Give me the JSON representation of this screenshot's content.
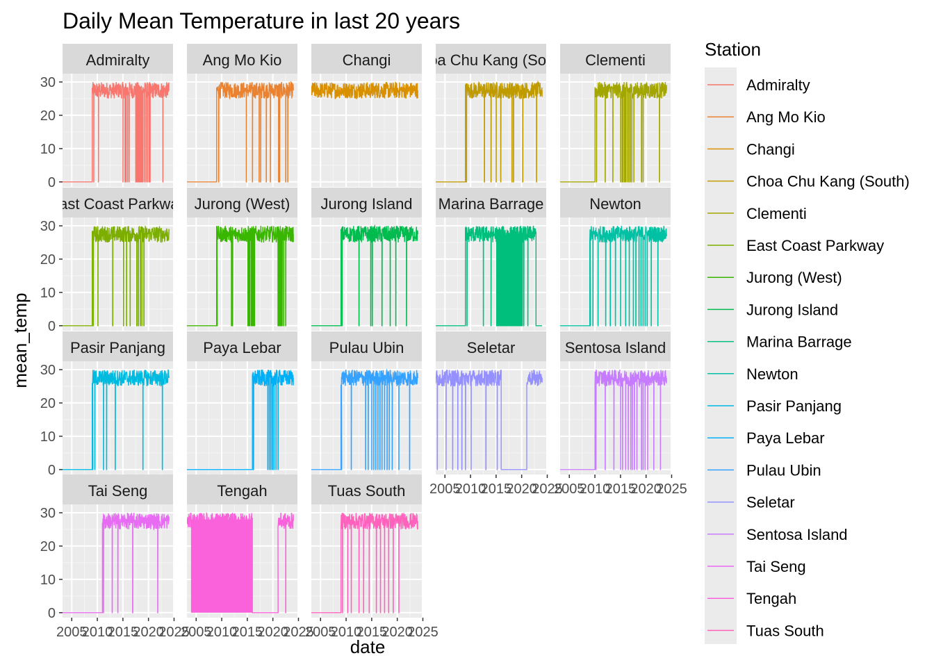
{
  "chart_data": {
    "type": "line",
    "title": "Daily Mean Temperature in last 20 years",
    "xlabel": "date",
    "ylabel": "mean_temp",
    "legend_title": "Station",
    "legend_position": "right",
    "grid": true,
    "x_ticks": [
      "2005",
      "2010",
      "2015",
      "2020",
      "2025"
    ],
    "y_ticks": [
      0,
      10,
      20,
      30
    ],
    "xlim": [
      2003.2,
      2024.8
    ],
    "ylim": [
      -1.5,
      32.5
    ],
    "series": [
      {
        "name": "Admiralty",
        "strip_label": "Admiralty",
        "color": "#F8766D",
        "segments": [
          [
            2003.0,
            2009.0,
            0
          ],
          [
            2009.0,
            2024.0,
            27.5
          ]
        ],
        "drops": [
          2009.3,
          2010.2,
          2015.0,
          2015.4,
          2015.6,
          2015.9,
          2016.2,
          2017.5,
          2017.7,
          2017.9,
          2018.1,
          2018.3,
          2018.5,
          2018.7,
          2018.9,
          2019.2,
          2019.5,
          2019.8,
          2020.1,
          2020.3,
          2022.8
        ]
      },
      {
        "name": "Ang Mo Kio",
        "strip_label": "Ang Mo Kio",
        "color": "#EA8331",
        "segments": [
          [
            2003.0,
            2009.0,
            0
          ],
          [
            2009.0,
            2024.0,
            27.5
          ]
        ],
        "drops": [
          2009.4,
          2014.8,
          2016.0,
          2017.3,
          2017.6,
          2018.7,
          2019.5,
          2021.1,
          2021.3,
          2022.5,
          2022.9
        ]
      },
      {
        "name": "Changi",
        "strip_label": "Changi",
        "color": "#D89000",
        "segments": [
          [
            2003.0,
            2024.0,
            27.5
          ]
        ],
        "drops": []
      },
      {
        "name": "Choa Chu Kang (South)",
        "strip_label": "Choa Chu Kang (South)",
        "color": "#C09B00",
        "segments": [
          [
            2003.0,
            2009.0,
            0
          ],
          [
            2009.0,
            2024.0,
            27.5
          ]
        ],
        "drops": [
          2009.2,
          2012.7,
          2014.0,
          2015.0,
          2015.9,
          2018.1,
          2018.4,
          2020.2,
          2022.9
        ]
      },
      {
        "name": "Clementi",
        "strip_label": "Clementi",
        "color": "#A3A500",
        "segments": [
          [
            2003.0,
            2010.0,
            0
          ],
          [
            2010.0,
            2024.0,
            27.5
          ]
        ],
        "drops": [
          2010.3,
          2012.0,
          2013.5,
          2015.0,
          2015.3,
          2015.5,
          2015.8,
          2016.0,
          2016.3,
          2016.6,
          2016.9,
          2017.2,
          2017.6,
          2019.1,
          2019.4,
          2022.6
        ]
      },
      {
        "name": "East Coast Parkway",
        "strip_label": "East Coast Parkway",
        "color": "#7CAE00",
        "segments": [
          [
            2003.0,
            2009.0,
            0
          ],
          [
            2009.0,
            2024.0,
            27.5
          ]
        ],
        "drops": [
          2009.2,
          2010.1,
          2013.0,
          2015.1,
          2015.7,
          2016.4,
          2017.7,
          2018.0,
          2018.4,
          2018.7,
          2019.1
        ]
      },
      {
        "name": "Jurong (West)",
        "strip_label": "Jurong (West)",
        "color": "#39B600",
        "segments": [
          [
            2003.0,
            2009.0,
            0
          ],
          [
            2009.0,
            2024.0,
            27.5
          ]
        ],
        "drops": [
          2009.1,
          2011.9,
          2012.1,
          2015.1,
          2015.3,
          2015.5,
          2015.8,
          2016.0,
          2016.2,
          2016.4,
          2021.0,
          2021.2,
          2021.4,
          2021.6,
          2021.8,
          2022.1,
          2022.5
        ]
      },
      {
        "name": "Jurong Island",
        "strip_label": "Jurong Island",
        "color": "#00BB4E",
        "segments": [
          [
            2003.0,
            2009.0,
            0
          ],
          [
            2009.0,
            2024.0,
            27.5
          ]
        ],
        "drops": [
          2009.2,
          2012.5,
          2014.8,
          2015.1,
          2017.0,
          2018.6,
          2019.7,
          2021.8
        ]
      },
      {
        "name": "Marina Barrage",
        "strip_label": "Marina Barrage",
        "color": "#00BF7D",
        "segments": [
          [
            2003.0,
            2009.0,
            0
          ],
          [
            2009.0,
            2022.8,
            27.5
          ],
          [
            2022.8,
            2024.0,
            0
          ]
        ],
        "drops": [
          2009.3,
          2012.5,
          2014.0,
          2015.1,
          2015.3,
          2015.5,
          2015.7,
          2015.9,
          2016.1,
          2016.3,
          2016.5,
          2016.7,
          2016.9,
          2017.1,
          2017.3,
          2017.5,
          2017.7,
          2017.9,
          2018.1,
          2018.3,
          2018.5,
          2018.7,
          2018.9,
          2019.1,
          2019.3,
          2019.5,
          2019.7,
          2019.9,
          2020.1,
          2020.4,
          2021.2
        ]
      },
      {
        "name": "Newton",
        "strip_label": "Newton",
        "color": "#00C1A3",
        "segments": [
          [
            2003.0,
            2009.0,
            0
          ],
          [
            2009.0,
            2024.0,
            27.5
          ]
        ],
        "drops": [
          2009.1,
          2009.6,
          2010.6,
          2012.1,
          2013.0,
          2014.0,
          2015.0,
          2016.0,
          2016.7,
          2017.5,
          2018.0,
          2018.6,
          2019.0,
          2019.4,
          2019.8,
          2020.2,
          2021.0,
          2022.3
        ]
      },
      {
        "name": "Pasir Panjang",
        "strip_label": "Pasir Panjang",
        "color": "#00BAE0",
        "segments": [
          [
            2003.0,
            2009.0,
            0
          ],
          [
            2009.0,
            2024.0,
            27.5
          ]
        ],
        "drops": [
          2009.1,
          2009.5,
          2011.2,
          2011.8,
          2013.5,
          2018.9,
          2022.7
        ]
      },
      {
        "name": "Paya Lebar",
        "strip_label": "Paya Lebar",
        "color": "#00B0F6",
        "segments": [
          [
            2003.0,
            2016.0,
            0
          ],
          [
            2016.0,
            2024.0,
            27.5
          ]
        ],
        "drops": [
          2016.2,
          2019.0,
          2019.3,
          2019.6,
          2019.9,
          2020.2,
          2020.6,
          2021.0
        ]
      },
      {
        "name": "Pulau Ubin",
        "strip_label": "Pulau Ubin",
        "color": "#35A2FF",
        "segments": [
          [
            2003.0,
            2009.0,
            0
          ],
          [
            2009.0,
            2024.0,
            27.5
          ]
        ],
        "drops": [
          2009.1,
          2011.0,
          2013.8,
          2014.3,
          2015.0,
          2015.4,
          2015.8,
          2016.2,
          2016.6,
          2017.0,
          2017.5,
          2018.0,
          2018.4,
          2019.0,
          2020.3,
          2022.4
        ]
      },
      {
        "name": "Seletar",
        "strip_label": "Seletar",
        "color": "#9590FF",
        "segments": [
          [
            2003.0,
            2016.0,
            27.5
          ],
          [
            2016.0,
            2021.0,
            0
          ],
          [
            2021.0,
            2024.0,
            27.5
          ]
        ],
        "drops": [
          2003.5,
          2005.2,
          2006.5,
          2007.5,
          2008.3,
          2009.0,
          2010.1,
          2013.0,
          2015.2
        ]
      },
      {
        "name": "Sentosa Island",
        "strip_label": "Sentosa Island",
        "color": "#C77CFF",
        "segments": [
          [
            2003.0,
            2010.0,
            0
          ],
          [
            2010.0,
            2024.0,
            27.5
          ]
        ],
        "drops": [
          2010.2,
          2012.0,
          2013.7,
          2015.0,
          2015.4,
          2016.0,
          2016.5,
          2017.0,
          2017.3,
          2017.7,
          2018.2,
          2019.1,
          2019.4,
          2019.8,
          2020.3,
          2021.5,
          2022.8
        ]
      },
      {
        "name": "Tai Seng",
        "strip_label": "Tai Seng",
        "color": "#E76BF3",
        "segments": [
          [
            2003.0,
            2011.0,
            0
          ],
          [
            2011.0,
            2024.0,
            27.5
          ]
        ],
        "drops": [
          2011.2,
          2012.9,
          2014.0,
          2016.9,
          2021.8
        ]
      },
      {
        "name": "Tengah",
        "strip_label": "Tengah",
        "color": "#FA62DB",
        "segments": [
          [
            2003.0,
            2016.0,
            27.5
          ],
          [
            2016.0,
            2021.0,
            0
          ],
          [
            2021.0,
            2024.0,
            27.5
          ]
        ],
        "drops": [
          2021.0,
          2022.5
        ],
        "dense_band": [
          2004.0,
          2016.0
        ]
      },
      {
        "name": "Tuas South",
        "strip_label": "Tuas South",
        "color": "#FF62BC",
        "segments": [
          [
            2003.0,
            2009.0,
            0
          ],
          [
            2009.0,
            2024.0,
            27.5
          ]
        ],
        "drops": [
          2009.3,
          2010.3,
          2011.0,
          2012.5,
          2013.4,
          2014.5,
          2015.9,
          2016.7,
          2017.5,
          2018.3,
          2019.2,
          2020.3
        ]
      }
    ]
  }
}
